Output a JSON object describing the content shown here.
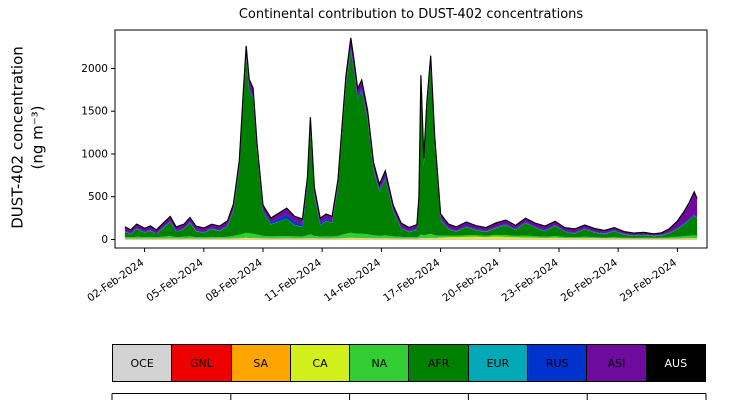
{
  "chart_data": {
    "type": "area",
    "stacked": true,
    "title": "Continental contribution to DUST-402 concentrations",
    "ylabel": "DUST-402 concentration",
    "ylabel_units": "(ng m⁻³)",
    "x_units": "day-of-month (Feb 2024)",
    "grid": false,
    "legend_position": "bottom",
    "xlim": [
      0.5,
      30.5
    ],
    "ylim": [
      -100,
      2450
    ],
    "yticks": [
      0,
      500,
      1000,
      1500,
      2000
    ],
    "xticks": [
      {
        "x": 2,
        "label": "02-Feb-2024"
      },
      {
        "x": 5,
        "label": "05-Feb-2024"
      },
      {
        "x": 8,
        "label": "08-Feb-2024"
      },
      {
        "x": 11,
        "label": "11-Feb-2024"
      },
      {
        "x": 14,
        "label": "14-Feb-2024"
      },
      {
        "x": 17,
        "label": "17-Feb-2024"
      },
      {
        "x": 20,
        "label": "20-Feb-2024"
      },
      {
        "x": 23,
        "label": "23-Feb-2024"
      },
      {
        "x": 26,
        "label": "26-Feb-2024"
      },
      {
        "x": 29,
        "label": "29-Feb-2024"
      }
    ],
    "x": [
      1.0,
      1.3,
      1.6,
      2.0,
      2.3,
      2.6,
      3.0,
      3.3,
      3.6,
      4.0,
      4.3,
      4.6,
      5.0,
      5.4,
      5.8,
      6.2,
      6.5,
      6.8,
      7.0,
      7.15,
      7.3,
      7.5,
      7.7,
      8.0,
      8.4,
      8.8,
      9.2,
      9.6,
      10.0,
      10.25,
      10.4,
      10.6,
      10.9,
      11.2,
      11.5,
      11.8,
      12.0,
      12.2,
      12.45,
      12.6,
      12.8,
      13.0,
      13.3,
      13.6,
      13.9,
      14.2,
      14.6,
      15.0,
      15.4,
      15.8,
      15.9,
      16.0,
      16.15,
      16.3,
      16.5,
      16.7,
      17.0,
      17.4,
      17.8,
      18.3,
      18.8,
      19.3,
      19.8,
      20.3,
      20.8,
      21.3,
      21.8,
      22.3,
      22.8,
      23.3,
      23.8,
      24.3,
      24.8,
      25.3,
      25.8,
      26.3,
      26.8,
      27.3,
      27.8,
      28.2,
      28.6,
      29.0,
      29.3,
      29.6,
      29.85,
      30.0
    ],
    "series": [
      {
        "name": "OCE",
        "color": "#d3d3d3",
        "values": 3
      },
      {
        "name": "GNL",
        "color": "#ee0000",
        "values": 2
      },
      {
        "name": "SA",
        "color": "#ffa500",
        "values": 2
      },
      {
        "name": "CA",
        "color": "#d2ef1b",
        "values": [
          3,
          3,
          3,
          3,
          3,
          3,
          3,
          4,
          3,
          3,
          4,
          3,
          3,
          3,
          3,
          3,
          5,
          8,
          10,
          12,
          10,
          10,
          8,
          5,
          4,
          4,
          5,
          4,
          4,
          6,
          8,
          5,
          4,
          4,
          4,
          5,
          8,
          10,
          12,
          10,
          10,
          10,
          8,
          6,
          5,
          6,
          4,
          3,
          3,
          3,
          4,
          10,
          8,
          8,
          10,
          8,
          15,
          18,
          20,
          22,
          25,
          20,
          28,
          22,
          18,
          15,
          12,
          10,
          12,
          8,
          6,
          8,
          6,
          5,
          5,
          4,
          3,
          3,
          3,
          3,
          3,
          4,
          5,
          6,
          8,
          6
        ]
      },
      {
        "name": "NA",
        "color": "#32cd32",
        "values": [
          20,
          15,
          22,
          18,
          20,
          15,
          25,
          28,
          18,
          22,
          26,
          18,
          16,
          20,
          18,
          22,
          30,
          40,
          50,
          60,
          55,
          50,
          42,
          30,
          25,
          26,
          28,
          25,
          24,
          35,
          45,
          30,
          22,
          25,
          22,
          28,
          40,
          50,
          60,
          55,
          50,
          50,
          45,
          35,
          30,
          35,
          25,
          20,
          15,
          18,
          25,
          45,
          35,
          40,
          50,
          35,
          22,
          18,
          15,
          20,
          16,
          14,
          18,
          22,
          16,
          22,
          18,
          14,
          20,
          14,
          12,
          16,
          12,
          10,
          14,
          10,
          8,
          10,
          8,
          10,
          14,
          20,
          25,
          30,
          35,
          30
        ]
      },
      {
        "name": "AFR",
        "color": "#008000",
        "values": [
          60,
          35,
          90,
          50,
          70,
          35,
          110,
          165,
          60,
          90,
          155,
          70,
          50,
          90,
          70,
          120,
          290,
          760,
          1540,
          2040,
          1670,
          1580,
          950,
          280,
          140,
          170,
          200,
          130,
          110,
          560,
          1230,
          470,
          130,
          180,
          160,
          570,
          1140,
          1720,
          2130,
          1910,
          1570,
          1670,
          1330,
          760,
          520,
          660,
          290,
          100,
          60,
          85,
          390,
          1740,
          800,
          1430,
          1950,
          1050,
          180,
          75,
          50,
          95,
          60,
          45,
          80,
          115,
          70,
          145,
          100,
          65,
          120,
          60,
          45,
          90,
          55,
          40,
          70,
          35,
          25,
          30,
          20,
          25,
          50,
          90,
          130,
          180,
          230,
          200
        ]
      },
      {
        "name": "EUR",
        "color": "#00a9b5",
        "values": 3
      },
      {
        "name": "RUS",
        "color": "#0033cc",
        "values": [
          8,
          8,
          8,
          8,
          8,
          8,
          8,
          10,
          8,
          8,
          10,
          8,
          8,
          8,
          8,
          10,
          15,
          20,
          25,
          30,
          25,
          25,
          20,
          15,
          20,
          35,
          50,
          40,
          35,
          40,
          45,
          30,
          25,
          20,
          18,
          20,
          25,
          30,
          35,
          30,
          28,
          28,
          25,
          20,
          18,
          20,
          15,
          12,
          10,
          10,
          12,
          25,
          20,
          22,
          28,
          20,
          15,
          12,
          10,
          10,
          8,
          8,
          10,
          10,
          8,
          10,
          8,
          10,
          8,
          8,
          8,
          8,
          8,
          8,
          8,
          6,
          6,
          6,
          5,
          6,
          8,
          10,
          12,
          14,
          12,
          10
        ]
      },
      {
        "name": "ASI",
        "color": "#6e0a9e",
        "values": [
          45,
          40,
          45,
          40,
          45,
          40,
          45,
          50,
          45,
          45,
          50,
          45,
          45,
          45,
          45,
          50,
          60,
          80,
          90,
          110,
          100,
          95,
          80,
          60,
          50,
          60,
          70,
          60,
          55,
          70,
          90,
          65,
          55,
          55,
          55,
          65,
          80,
          90,
          110,
          100,
          95,
          95,
          90,
          70,
          60,
          70,
          55,
          45,
          40,
          45,
          50,
          90,
          75,
          85,
          100,
          80,
          55,
          45,
          40,
          45,
          40,
          40,
          45,
          45,
          40,
          45,
          40,
          45,
          40,
          35,
          40,
          35,
          35,
          30,
          30,
          25,
          20,
          22,
          18,
          22,
          40,
          80,
          130,
          190,
          260,
          220
        ]
      },
      {
        "name": "AUS",
        "color": "#000000",
        "values": 2
      }
    ],
    "legend": {
      "entries": [
        {
          "label": "OCE",
          "color": "#d3d3d3",
          "text_color": "#000000"
        },
        {
          "label": "GNL",
          "color": "#ee0000",
          "text_color": "#000000"
        },
        {
          "label": "SA",
          "color": "#ffa500",
          "text_color": "#000000"
        },
        {
          "label": "CA",
          "color": "#d2ef1b",
          "text_color": "#000000"
        },
        {
          "label": "NA",
          "color": "#32cd32",
          "text_color": "#000000"
        },
        {
          "label": "AFR",
          "color": "#008000",
          "text_color": "#000000"
        },
        {
          "label": "EUR",
          "color": "#00a9b5",
          "text_color": "#000000"
        },
        {
          "label": "RUS",
          "color": "#0033cc",
          "text_color": "#000000"
        },
        {
          "label": "ASI",
          "color": "#6e0a9e",
          "text_color": "#000000"
        },
        {
          "label": "AUS",
          "color": "#000000",
          "text_color": "#ffffff"
        }
      ]
    }
  }
}
